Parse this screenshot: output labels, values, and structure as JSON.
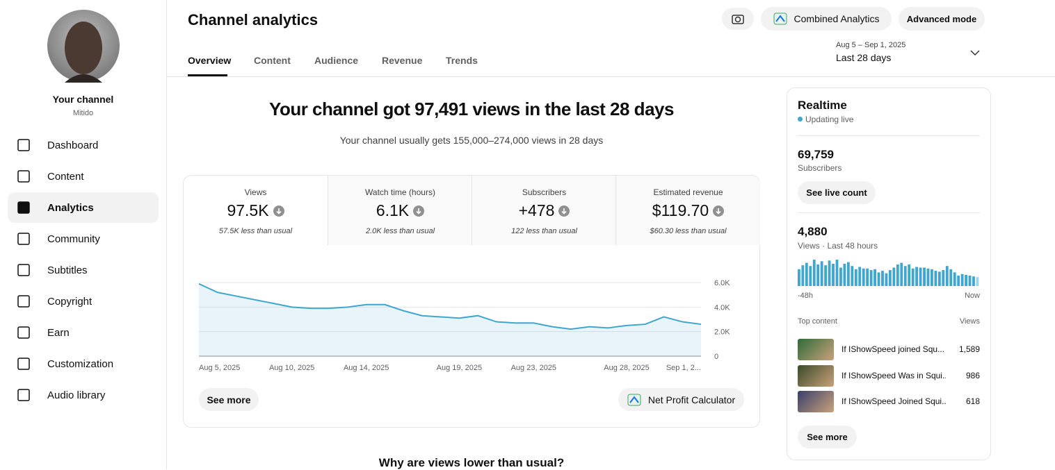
{
  "sidebar": {
    "channel_title": "Your channel",
    "channel_name": "Mitido",
    "nav": [
      "Dashboard",
      "Content",
      "Analytics",
      "Community",
      "Subtitles",
      "Copyright",
      "Earn",
      "Customization",
      "Audio library"
    ]
  },
  "header": {
    "title": "Channel analytics",
    "tabs": [
      "Overview",
      "Content",
      "Audience",
      "Revenue",
      "Trends"
    ],
    "buttons": [
      "Combined Analytics",
      "Advanced mode"
    ],
    "date_range": "Aug 5 – Sep 1, 2025",
    "period": "Last 28 days"
  },
  "summary": {
    "headline": "Your channel got 97,491 views in the last 28 days",
    "subhead": "Your channel usually gets 155,000–274,000 views in 28 days"
  },
  "metrics": [
    {
      "label": "Views",
      "value": "97.5K",
      "note": "57.5K less than usual"
    },
    {
      "label": "Watch time (hours)",
      "value": "6.1K",
      "note": "2.0K less than usual"
    },
    {
      "label": "Subscribers",
      "value": "+478",
      "note": "122 less than usual"
    },
    {
      "label": "Estimated revenue",
      "value": "$119.70",
      "note": "$60.30 less than usual"
    }
  ],
  "chart_data": {
    "type": "line",
    "categories": [
      "Aug 5, 2025",
      null,
      null,
      null,
      null,
      "Aug 10, 2025",
      null,
      null,
      null,
      "Aug 14, 2025",
      null,
      null,
      null,
      null,
      "Aug 19, 2025",
      null,
      null,
      null,
      "Aug 23, 2025",
      null,
      null,
      null,
      null,
      "Aug 28, 2025",
      null,
      null,
      null,
      "Sep 1, 2..."
    ],
    "values": [
      5900,
      5200,
      4900,
      4600,
      4300,
      4000,
      3900,
      3900,
      4000,
      4200,
      4200,
      3700,
      3300,
      3200,
      3100,
      3300,
      2800,
      2700,
      2700,
      2400,
      2200,
      2400,
      2300,
      2500,
      2600,
      3200,
      2800,
      2600
    ],
    "color": "#3ea6cf",
    "ylim": [
      0,
      6000
    ],
    "yticks": [
      0,
      {
        "value": 2000,
        "label": "2.0K"
      },
      {
        "value": 4000,
        "label": "4.0K"
      },
      {
        "value": 6000,
        "label": "6.0K"
      }
    ],
    "grid": true
  },
  "card_buttons": [
    "See more",
    "Net Profit Calculator"
  ],
  "realtime": {
    "title": "Realtime",
    "status": "Updating live",
    "subscribers": "69,759",
    "subscribers_label": "Subscribers",
    "live_button": "See live count",
    "views": "4,880",
    "views_label": "Views · Last 48 hours",
    "chart": {
      "type": "bar",
      "values": [
        95,
        117,
        131,
        113,
        149,
        122,
        140,
        117,
        144,
        126,
        149,
        104,
        126,
        135,
        113,
        95,
        108,
        99,
        99,
        90,
        95,
        77,
        86,
        72,
        90,
        104,
        122,
        131,
        113,
        122,
        99,
        108,
        104,
        104,
        99,
        95,
        86,
        81,
        90,
        113,
        95,
        77,
        59,
        68,
        63,
        59,
        54,
        50
      ],
      "color": "#3ea6cf",
      "start_label": "-48h",
      "end_label": "Now"
    },
    "top_content_label": "Top content",
    "views_column": "Views",
    "top_content": [
      {
        "title": "If IShowSpeed joined Squ...",
        "views": "1,589"
      },
      {
        "title": "If IShowSpeed Was in Squi...",
        "views": "986"
      },
      {
        "title": "If IShowSpeed Joined Squi...",
        "views": "618"
      }
    ],
    "more_button": "See more"
  },
  "footer_heading": "Why are views lower than usual?"
}
